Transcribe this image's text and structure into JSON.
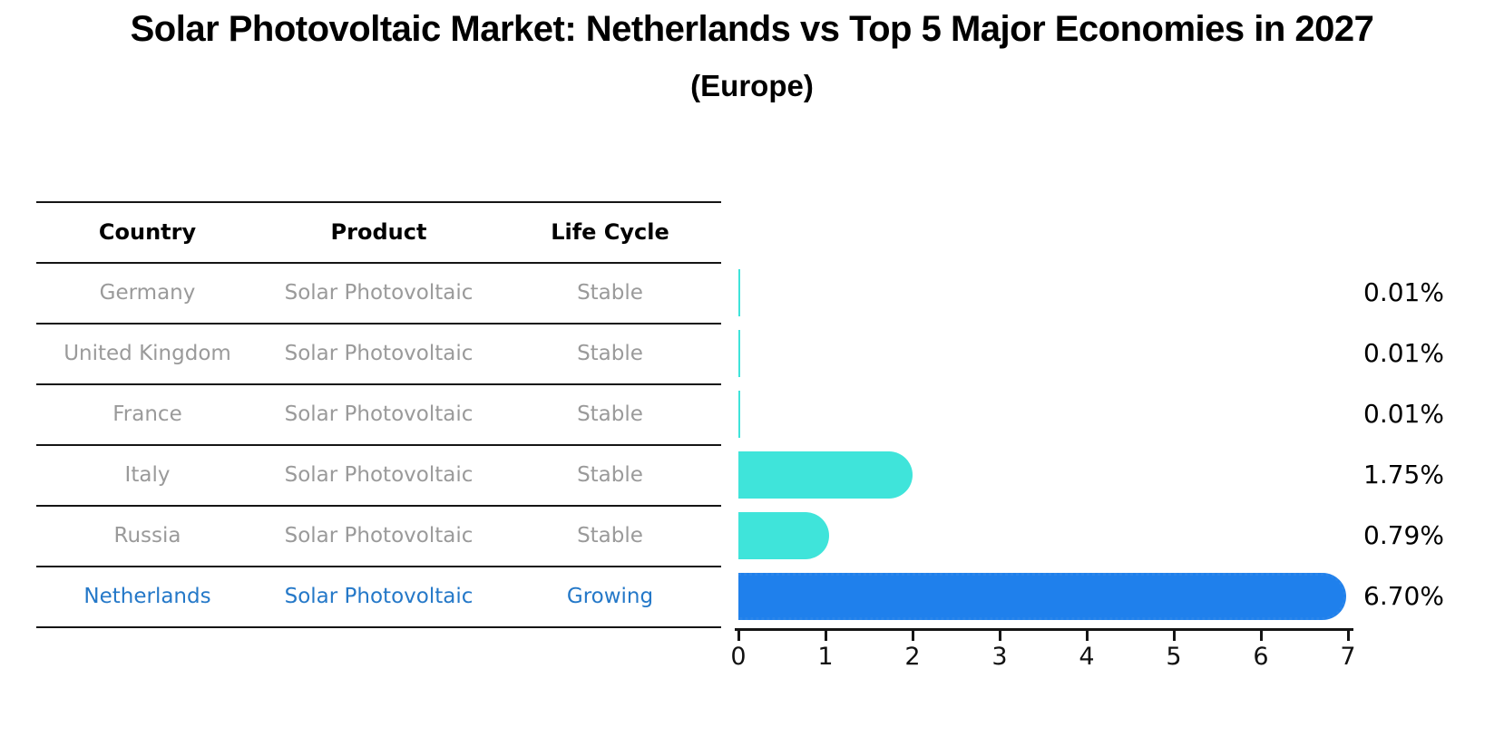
{
  "title": "Solar Photovoltaic Market: Netherlands vs Top 5 Major Economies in 2027",
  "subtitle": "(Europe)",
  "table": {
    "headers": [
      "Country",
      "Product",
      "Life Cycle"
    ],
    "rows": [
      {
        "country": "Germany",
        "product": "Solar Photovoltaic",
        "life_cycle": "Stable",
        "highlight": false
      },
      {
        "country": "United Kingdom",
        "product": "Solar Photovoltaic",
        "life_cycle": "Stable",
        "highlight": false
      },
      {
        "country": "France",
        "product": "Solar Photovoltaic",
        "life_cycle": "Stable",
        "highlight": false
      },
      {
        "country": "Italy",
        "product": "Solar Photovoltaic",
        "life_cycle": "Stable",
        "highlight": false
      },
      {
        "country": "Russia",
        "product": "Solar Photovoltaic",
        "life_cycle": "Stable",
        "highlight": false
      },
      {
        "country": "Netherlands",
        "product": "Solar Photovoltaic",
        "life_cycle": "Growing",
        "highlight": true
      }
    ]
  },
  "chart_data": {
    "type": "bar",
    "orientation": "horizontal",
    "title": "Solar Photovoltaic Market: Netherlands vs Top 5 Major Economies in 2027",
    "subtitle": "(Europe)",
    "categories": [
      "Germany",
      "United Kingdom",
      "France",
      "Italy",
      "Russia",
      "Netherlands"
    ],
    "values": [
      0.01,
      0.01,
      0.01,
      1.75,
      0.79,
      6.7
    ],
    "value_labels": [
      "0.01%",
      "0.01%",
      "0.01%",
      "1.75%",
      "0.79%",
      "6.70%"
    ],
    "x_ticks": [
      "0",
      "1",
      "2",
      "3",
      "4",
      "5",
      "6",
      "7"
    ],
    "xlim": [
      0,
      7
    ],
    "grid": false,
    "legend": "none",
    "highlight_index": 5,
    "colors": {
      "bar_default": "#3fe4da",
      "bar_highlight": "#1f80ec",
      "highlight_text": "#2478c8",
      "row_text": "#9a9a9a",
      "axis": "#151515"
    }
  }
}
